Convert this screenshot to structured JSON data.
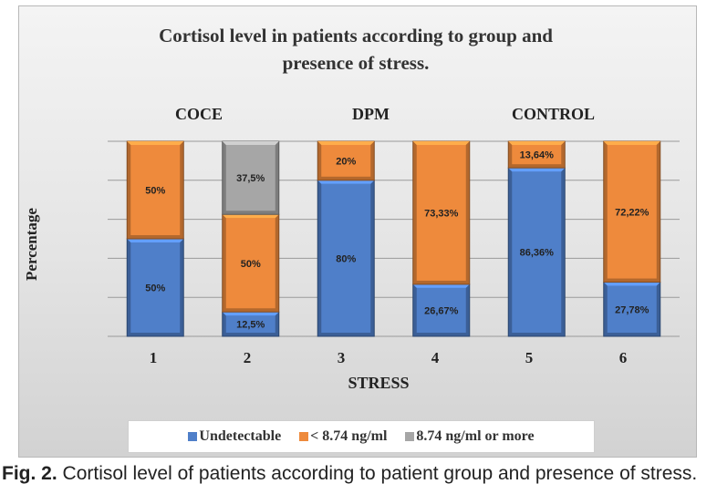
{
  "chart_data": {
    "type": "bar",
    "stacked": true,
    "title": "Cortisol level in patients according to group and presence of stress.",
    "title_lines": [
      "Cortisol level in patients according to group and",
      "presence of stress."
    ],
    "xlabel": "STRESS",
    "ylabel": "Percentage",
    "ylim": [
      0,
      100
    ],
    "grid": true,
    "legend_position": "bottom",
    "categories": [
      "1",
      "2",
      "3",
      "4",
      "5",
      "6"
    ],
    "groups": [
      {
        "label": "COCE",
        "categories": [
          "1",
          "2"
        ]
      },
      {
        "label": "DPM",
        "categories": [
          "3",
          "4"
        ]
      },
      {
        "label": "CONTROL",
        "categories": [
          "5",
          "6"
        ]
      }
    ],
    "series": [
      {
        "name": "Undetectable",
        "color": "#4f7fc9",
        "values": [
          50,
          12.5,
          80,
          26.67,
          86.36,
          27.78
        ],
        "labels": [
          "50%",
          "12,5%",
          "80%",
          "26,67%",
          "86,36%",
          "27,78%"
        ]
      },
      {
        "name": "< 8.74 ng/ml",
        "color": "#ee8a3c",
        "values": [
          50,
          50,
          20,
          73.33,
          13.64,
          72.22
        ],
        "labels": [
          "50%",
          "50%",
          "20%",
          "73,33%",
          "13,64%",
          "72,22%"
        ]
      },
      {
        "name": "8.74 ng/ml or more",
        "color": "#a6a6a6",
        "values": [
          0,
          37.5,
          0,
          0,
          0,
          0
        ],
        "labels": [
          "",
          "37,5%",
          "",
          "",
          "",
          ""
        ]
      }
    ]
  },
  "caption": {
    "prefix": "Fig. 2.",
    "text": "Cortisol level of patients according to patient group and presence of stress."
  }
}
